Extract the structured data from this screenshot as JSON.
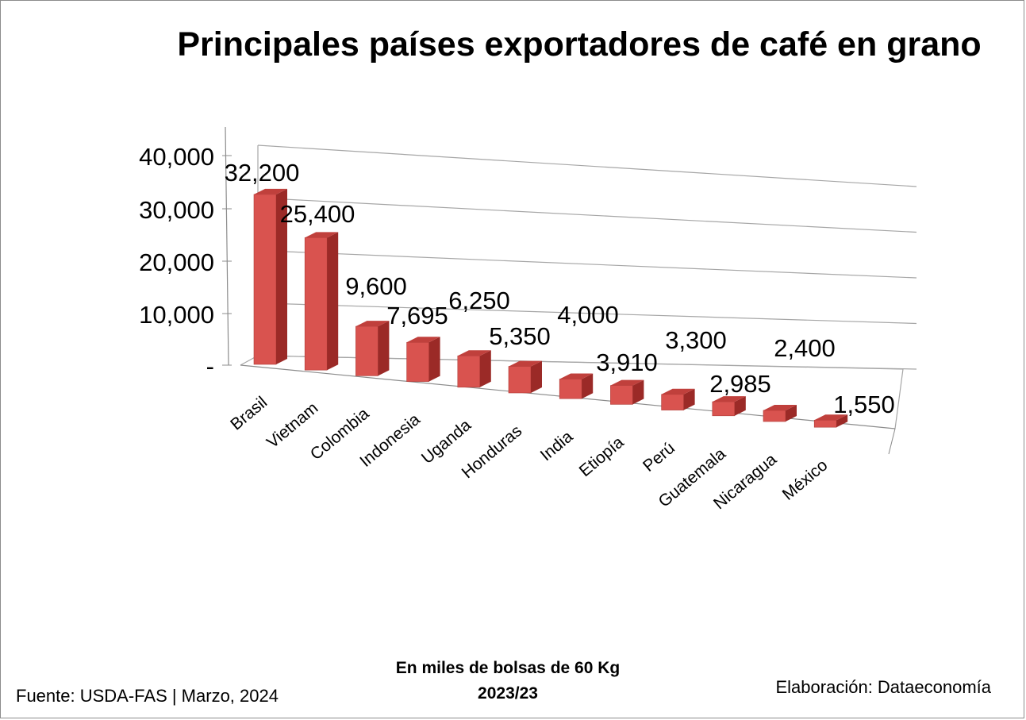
{
  "chart_data": {
    "type": "bar",
    "title": "Principales países exportadores de café en grano",
    "subtitle_line1": "En miles de bolsas de 60 Kg",
    "subtitle_line2": "2023/23",
    "categories": [
      "Brasil",
      "Vietnam",
      "Colombia",
      "Indonesia",
      "Uganda",
      "Honduras",
      "India",
      "Etiopía",
      "Perú",
      "Guatemala",
      "Nicaragua",
      "México"
    ],
    "values": [
      32200,
      25400,
      9600,
      7695,
      6250,
      5350,
      4000,
      3910,
      3300,
      2985,
      2400,
      1550
    ],
    "value_labels": [
      "32,200",
      "25,400",
      "9,600",
      "7,695",
      "6,250",
      "5,350",
      "4,000",
      "3,910",
      "3,300",
      "2,985",
      "2,400",
      "1,550"
    ],
    "y_ticks": [
      "-",
      "10,000",
      "20,000",
      "30,000",
      "40,000"
    ],
    "ylim": [
      0,
      40000
    ],
    "grid": true,
    "bar_color": "#d9534f",
    "bar_side_color": "#9b2a27",
    "bar_top_color": "#c0403c"
  },
  "footer": {
    "source": "Fuente:  USDA-FAS | Marzo, 2024",
    "credit": "Elaboración: Dataeconomía"
  }
}
